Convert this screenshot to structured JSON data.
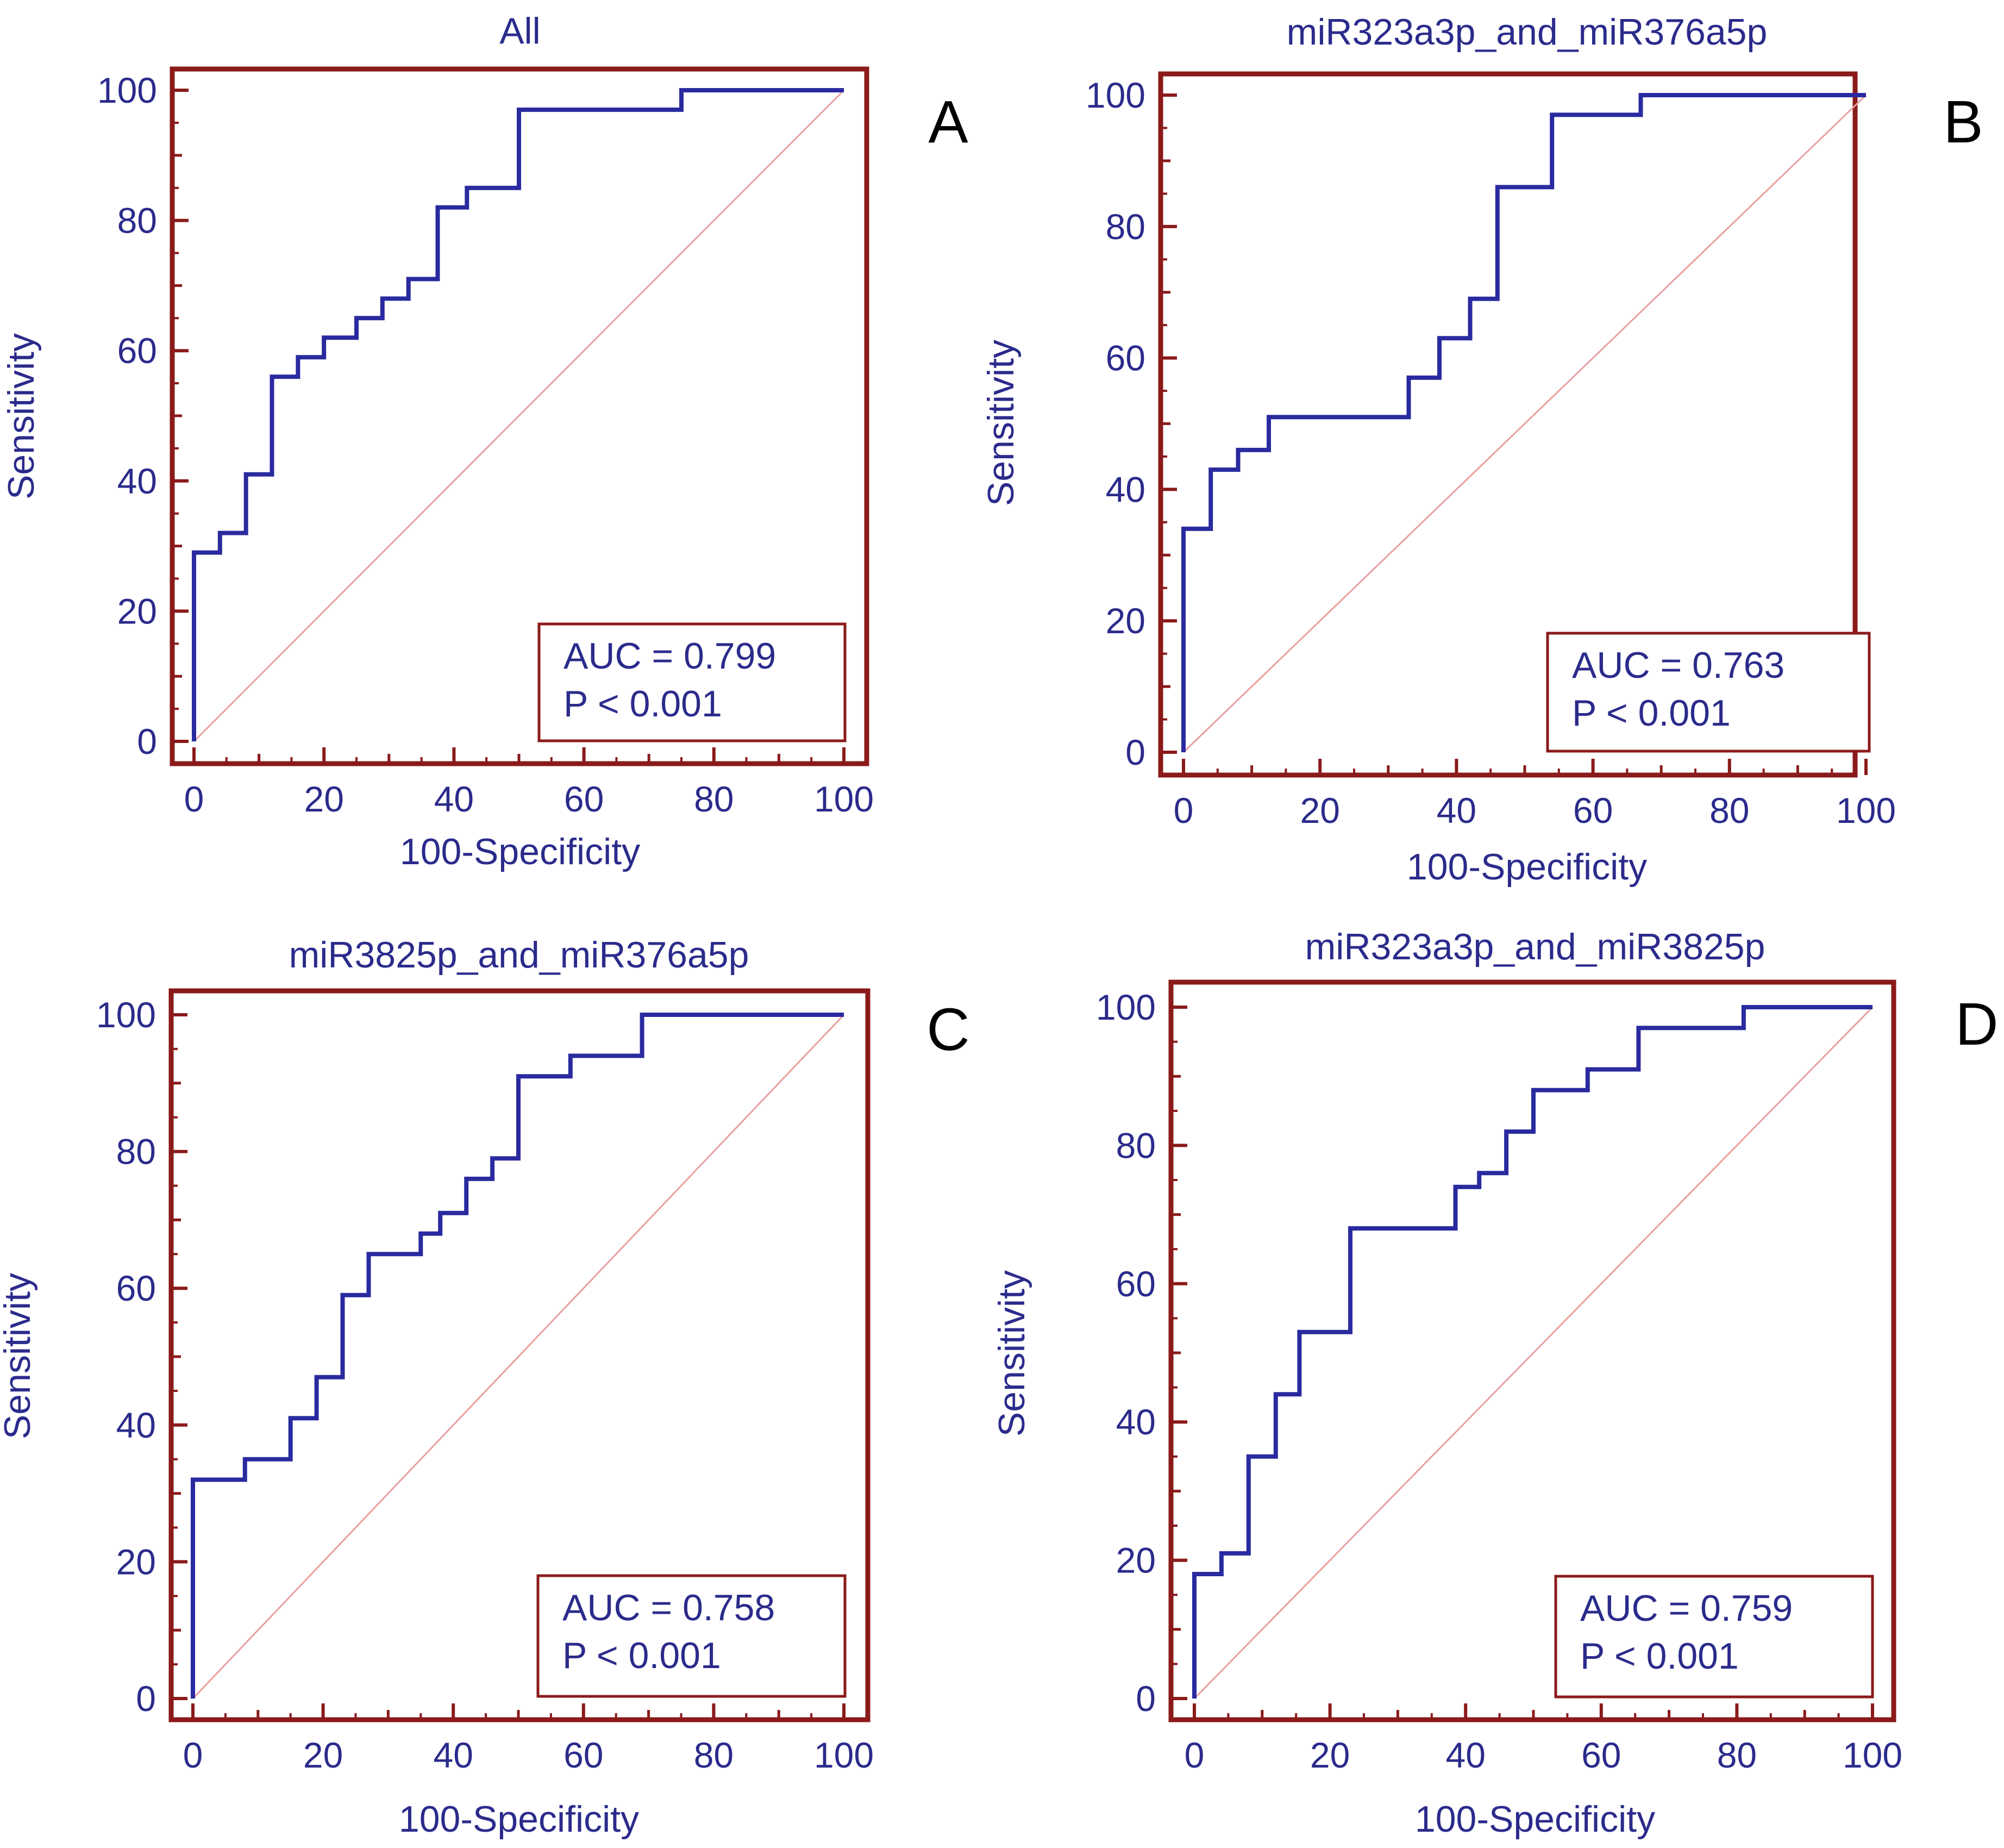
{
  "colors": {
    "axis": "#8b1a1a",
    "text": "#2b2b8c",
    "curve": "#2a2aa0",
    "diagonal": "#e8a0a0",
    "letter": "#000000"
  },
  "chart_data": [
    {
      "type": "line",
      "panel_letter": "A",
      "title": "All",
      "xlabel": "100-Specificity",
      "ylabel": "Sensitivity",
      "xlim": [
        0,
        100
      ],
      "ylim": [
        0,
        100
      ],
      "ticks": [
        0,
        20,
        40,
        60,
        80,
        100
      ],
      "minor_ticks": [
        10,
        30,
        50,
        70,
        90
      ],
      "auc_text": "AUC = 0.799",
      "p_text": "P < 0.001",
      "series": [
        {
          "name": "ROC",
          "x": [
            0,
            0,
            4,
            4,
            8,
            8,
            12,
            12,
            16,
            16,
            20,
            20,
            25,
            25,
            29,
            29,
            33,
            33,
            37.5,
            37.5,
            42,
            42,
            50,
            50,
            75,
            75,
            100
          ],
          "y": [
            0,
            29,
            29,
            32,
            32,
            41,
            41,
            56,
            56,
            59,
            59,
            62,
            62,
            65,
            65,
            68,
            68,
            71,
            71,
            82,
            82,
            85,
            85,
            97,
            97,
            100,
            100
          ]
        },
        {
          "name": "Reference",
          "x": [
            0,
            100
          ],
          "y": [
            0,
            100
          ]
        }
      ]
    },
    {
      "type": "line",
      "panel_letter": "B",
      "title": "miR323a3p_and_miR376a5p",
      "xlabel": "100-Specificity",
      "ylabel": "Sensitivity",
      "xlim": [
        0,
        100
      ],
      "ylim": [
        0,
        100
      ],
      "ticks": [
        0,
        20,
        40,
        60,
        80,
        100
      ],
      "minor_ticks": [
        10,
        30,
        50,
        70,
        90
      ],
      "auc_text": "AUC = 0.763",
      "p_text": "P < 0.001",
      "series": [
        {
          "name": "ROC",
          "x": [
            0,
            0,
            4,
            4,
            8,
            8,
            12.5,
            12.5,
            33,
            33,
            37.5,
            37.5,
            42,
            42,
            46,
            46,
            54,
            54,
            67,
            67,
            100
          ],
          "y": [
            0,
            34,
            34,
            43,
            43,
            46,
            46,
            51,
            51,
            57,
            57,
            63,
            63,
            69,
            69,
            86,
            86,
            97,
            97,
            100,
            100
          ]
        },
        {
          "name": "Reference",
          "x": [
            0,
            100
          ],
          "y": [
            0,
            100
          ]
        }
      ]
    },
    {
      "type": "line",
      "panel_letter": "C",
      "title": "miR3825p_and_miR376a5p",
      "xlabel": "100-Specificity",
      "ylabel": "Sensitivity",
      "xlim": [
        0,
        100
      ],
      "ylim": [
        0,
        100
      ],
      "ticks": [
        0,
        20,
        40,
        60,
        80,
        100
      ],
      "minor_ticks": [
        10,
        30,
        50,
        70,
        90
      ],
      "auc_text": "AUC = 0.758",
      "p_text": "P < 0.001",
      "series": [
        {
          "name": "ROC",
          "x": [
            0,
            0,
            8,
            8,
            15,
            15,
            19,
            19,
            23,
            23,
            27,
            27,
            35,
            35,
            38,
            38,
            42,
            42,
            46,
            46,
            50,
            50,
            58,
            58,
            69,
            69,
            100
          ],
          "y": [
            0,
            32,
            32,
            35,
            35,
            41,
            41,
            47,
            47,
            59,
            59,
            65,
            65,
            68,
            68,
            71,
            71,
            76,
            76,
            79,
            79,
            91,
            91,
            94,
            94,
            100,
            100
          ]
        },
        {
          "name": "Reference",
          "x": [
            0,
            100
          ],
          "y": [
            0,
            100
          ]
        }
      ]
    },
    {
      "type": "line",
      "panel_letter": "D",
      "title": "miR323a3p_and_miR3825p",
      "xlabel": "100-Specificity",
      "ylabel": "Sensitivity",
      "xlim": [
        0,
        100
      ],
      "ylim": [
        0,
        100
      ],
      "ticks": [
        0,
        20,
        40,
        60,
        80,
        100
      ],
      "minor_ticks": [
        10,
        30,
        50,
        70,
        90
      ],
      "auc_text": "AUC = 0.759",
      "p_text": "P < 0.001",
      "series": [
        {
          "name": "ROC",
          "x": [
            0,
            0,
            4,
            4,
            8,
            8,
            12,
            12,
            15.5,
            15.5,
            23,
            23,
            38.5,
            38.5,
            42,
            42,
            46,
            46,
            50,
            50,
            58,
            58,
            65.5,
            65.5,
            81,
            81,
            100
          ],
          "y": [
            0,
            18,
            18,
            21,
            21,
            35,
            35,
            44,
            44,
            53,
            53,
            68,
            68,
            74,
            74,
            76,
            76,
            82,
            82,
            88,
            88,
            91,
            91,
            97,
            97,
            100,
            100
          ]
        },
        {
          "name": "Reference",
          "x": [
            0,
            100
          ],
          "y": [
            0,
            100
          ]
        }
      ]
    }
  ]
}
